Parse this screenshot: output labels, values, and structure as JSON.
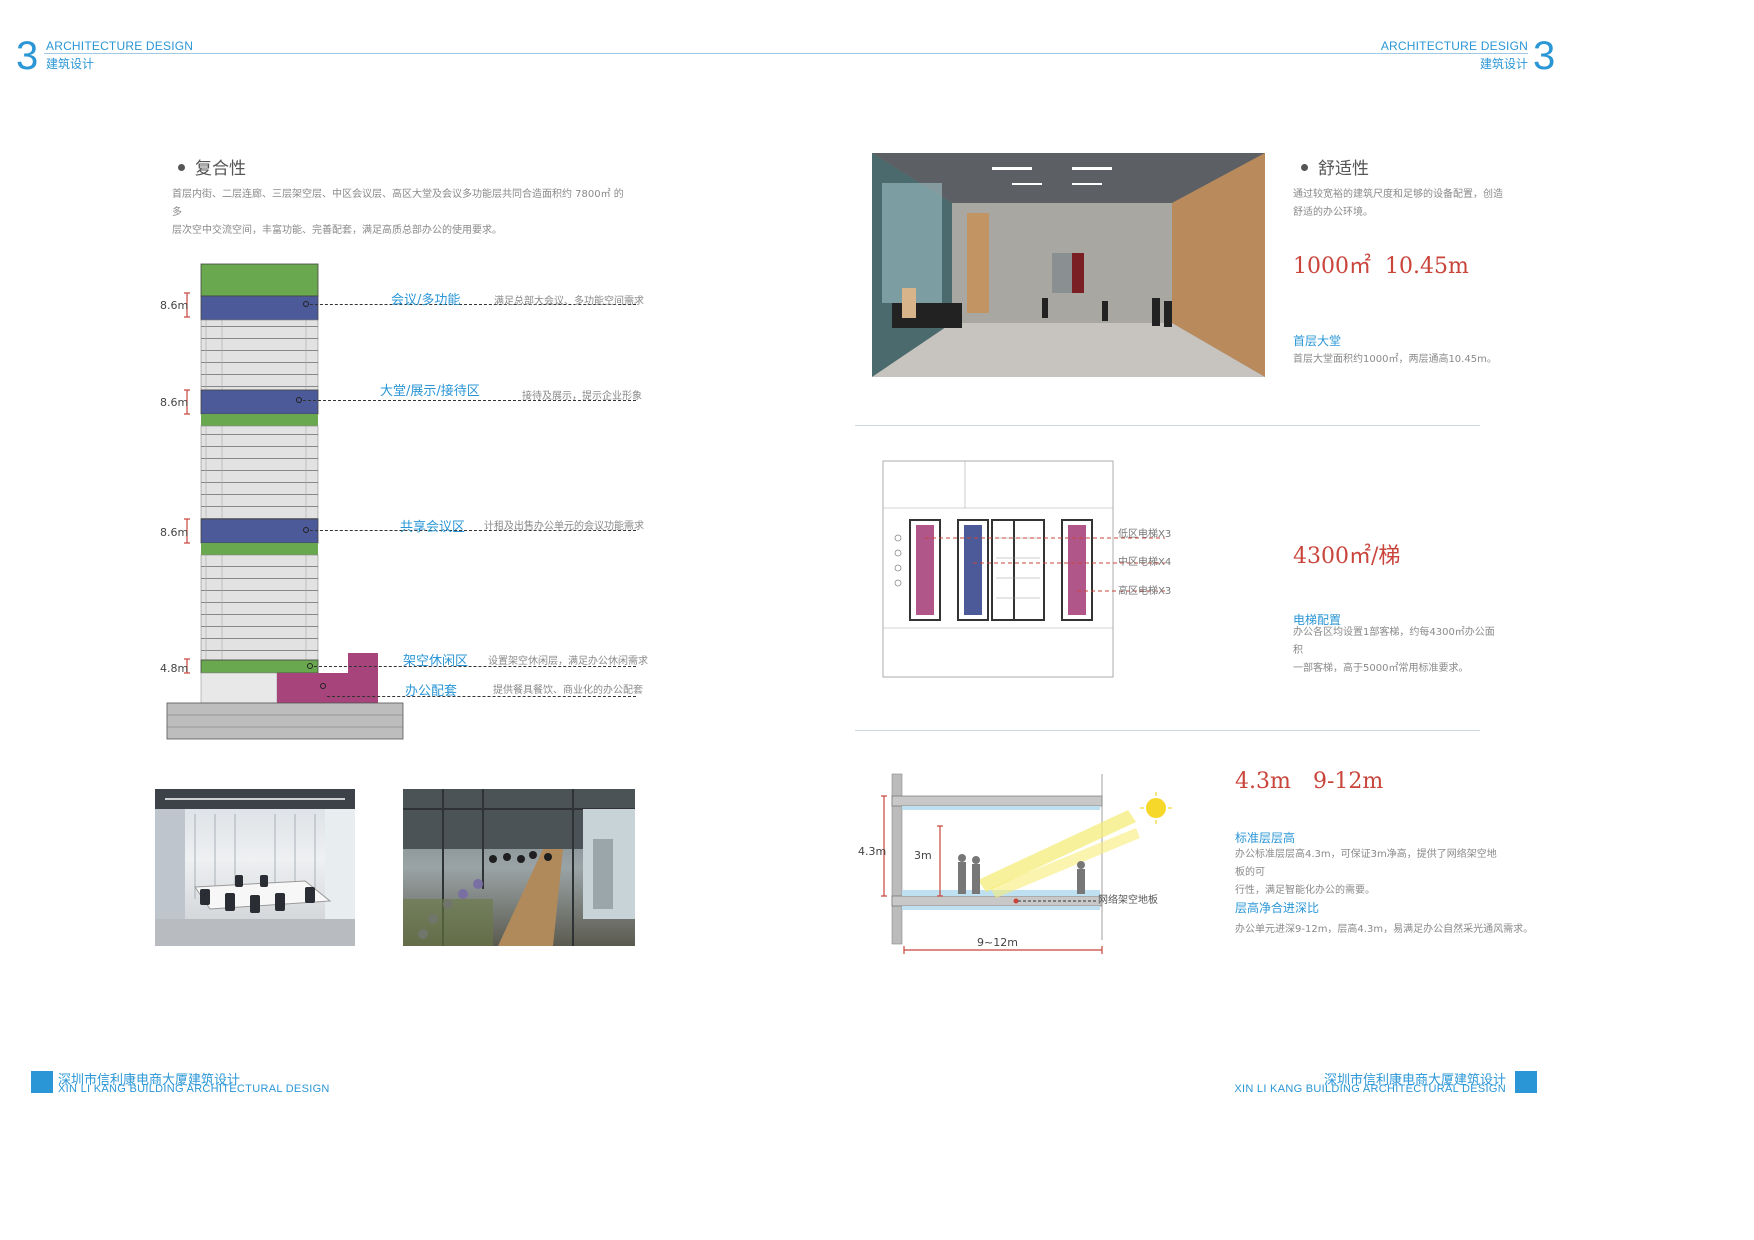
{
  "header": {
    "number": "3",
    "en": "ARCHITECTURE DESIGN",
    "cn": "建筑设计"
  },
  "footer": {
    "cn": "深圳市信利康电商大厦建筑设计",
    "en": "XIN LI KANG BUILDING ARCHITECTURAL DESIGN"
  },
  "left": {
    "title": "复合性",
    "para": [
      "首层内街、二层连廊、三层架空层、中区会议层、高区大堂及会议多功能层共同合造面积约 7800㎡ 的多",
      "层次空中交流空间，丰富功能、完善配套，满足高质总部办公的使用要求。"
    ],
    "section": {
      "heights": [
        "8.6m",
        "8.6m",
        "8.6m",
        "4.8m"
      ],
      "labels": [
        {
          "name": "会议/多功能",
          "desc": "满足总部大会议、多功能空间需求"
        },
        {
          "name": "大堂/展示/接待区",
          "desc": "接待及展示，提示企业形象"
        },
        {
          "name": "共享会议区",
          "desc": "计租及出售办公单元的会议功能需求"
        },
        {
          "name": "架空休闲区",
          "desc": "设置架空休闲层，满足办公休闲需求"
        },
        {
          "name": "办公配套",
          "desc": "提供餐具餐饮、商业化的办公配套"
        }
      ]
    }
  },
  "right": {
    "comfort": {
      "title": "舒适性",
      "para": [
        "通过较宽裕的建筑尺度和足够的设备配置，创造",
        "舒适的办公环境。"
      ],
      "big": "1000㎡  10.45m",
      "sub": "首层大堂",
      "desc": "首层大堂面积约1000㎡，两层通高10.45m。"
    },
    "elevator": {
      "big": "4300㎡/梯",
      "sub": "电梯配置",
      "desc": [
        "办公各区均设置1部客梯，约每4300㎡办公面积",
        "一部客梯，高于5000㎡常用标准要求。"
      ],
      "tags": [
        "低区电梯X3",
        "中区电梯X4",
        "高区电梯X3"
      ]
    },
    "floor": {
      "big1": "4.3m",
      "big2": "9-12m",
      "sub1": "标准层层高",
      "desc1": [
        "办公标准层层高4.3m，可保证3m净高，提供了网络架空地板的可",
        "行性，满足智能化办公的需要。"
      ],
      "sub2": "层高净合进深比",
      "desc2": "办公单元进深9-12m，层高4.3m，易满足办公自然采光通风需求。",
      "dims": {
        "h": "4.3m",
        "clear": "3m",
        "depth": "9~12m",
        "floor_label": "网络架空地板"
      }
    }
  },
  "colors": {
    "accent": "#2a96d6",
    "highlight": "#c9443a",
    "green": "#6aa84f",
    "navy": "#4d5a99",
    "magenta": "#a8447c"
  }
}
